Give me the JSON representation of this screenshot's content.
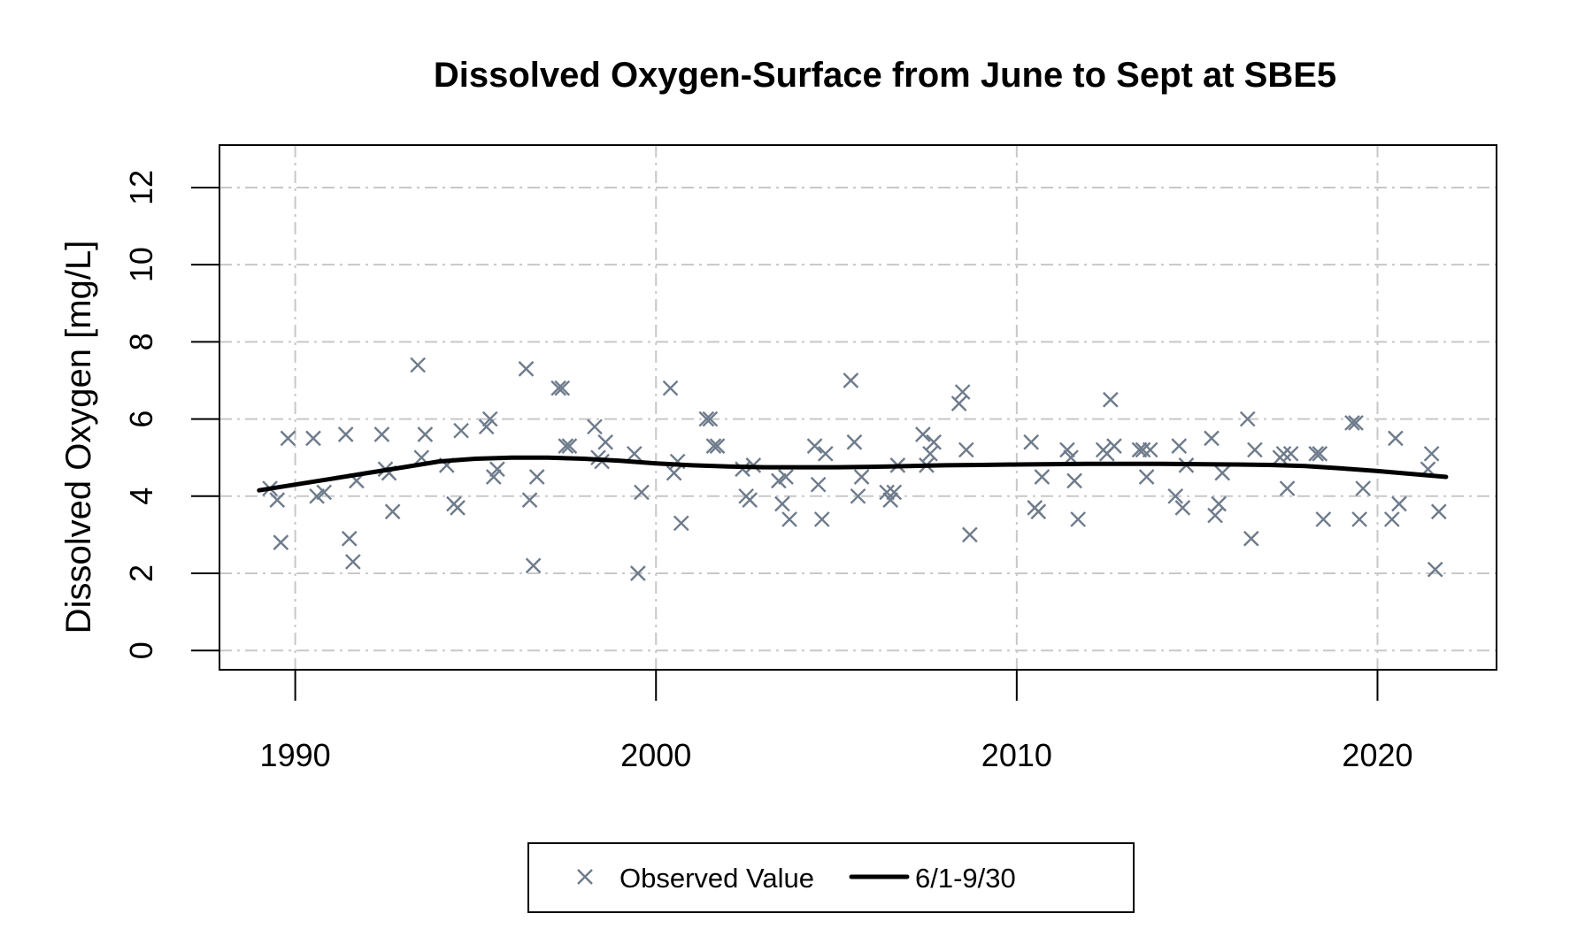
{
  "chart_data": {
    "type": "scatter",
    "title": "Dissolved Oxygen-Surface from June to Sept at SBE5",
    "xlabel": "",
    "ylabel": "Dissolved Oxygen [mg/L]",
    "xlim": [
      1987.9,
      2023.3
    ],
    "ylim": [
      -0.5,
      13.1
    ],
    "xticks": [
      1990,
      2000,
      2010,
      2020
    ],
    "yticks": [
      0,
      2,
      4,
      6,
      8,
      10,
      12
    ],
    "grid": true,
    "legend_position": "bottom",
    "colors": {
      "points": "#6e7b8b",
      "line": "#000000"
    },
    "series": [
      {
        "name": "Observed Value",
        "kind": "points",
        "marker": "x",
        "x": [
          1989.3,
          1989.5,
          1989.6,
          1989.8,
          1990.5,
          1990.6,
          1990.8,
          1991.4,
          1991.5,
          1991.6,
          1991.7,
          1992.4,
          1992.5,
          1992.6,
          1992.7,
          1993.4,
          1993.5,
          1993.6,
          1994.2,
          1994.4,
          1994.5,
          1994.6,
          1995.3,
          1995.4,
          1995.5,
          1995.6,
          1996.4,
          1996.5,
          1996.6,
          1996.7,
          1997.3,
          1997.4,
          1997.5,
          1997.6,
          1998.3,
          1998.4,
          1998.5,
          1998.6,
          1999.4,
          1999.5,
          1999.6,
          2000.4,
          2000.5,
          2000.6,
          2000.7,
          2001.4,
          2001.5,
          2001.6,
          2001.7,
          2002.4,
          2002.5,
          2002.6,
          2002.7,
          2003.4,
          2003.5,
          2003.6,
          2003.7,
          2004.4,
          2004.5,
          2004.6,
          2004.7,
          2005.4,
          2005.5,
          2005.6,
          2005.7,
          2006.4,
          2006.5,
          2006.6,
          2006.7,
          2007.4,
          2007.5,
          2007.6,
          2007.7,
          2008.4,
          2008.5,
          2008.6,
          2008.7,
          2010.4,
          2010.5,
          2010.6,
          2010.7,
          2011.4,
          2011.5,
          2011.6,
          2011.7,
          2012.4,
          2012.5,
          2012.6,
          2012.7,
          2013.4,
          2013.5,
          2013.6,
          2013.7,
          2014.4,
          2014.5,
          2014.6,
          2014.7,
          2015.4,
          2015.5,
          2015.6,
          2015.7,
          2016.4,
          2016.5,
          2016.6,
          2017.3,
          2017.4,
          2017.5,
          2017.6,
          2018.3,
          2018.4,
          2018.5,
          2019.3,
          2019.4,
          2019.5,
          2019.6,
          2020.4,
          2020.5,
          2020.6,
          2021.4,
          2021.5,
          2021.6,
          2021.7
        ],
        "y": [
          4.2,
          3.9,
          2.8,
          5.5,
          5.5,
          4.0,
          4.1,
          5.6,
          2.9,
          2.3,
          4.4,
          5.6,
          4.7,
          4.6,
          3.6,
          7.4,
          5.0,
          5.6,
          4.8,
          3.8,
          3.7,
          5.7,
          5.8,
          6.0,
          4.5,
          4.7,
          7.3,
          3.9,
          2.2,
          4.5,
          6.8,
          6.8,
          5.3,
          5.3,
          5.8,
          5.0,
          4.9,
          5.4,
          5.1,
          2.0,
          4.1,
          6.8,
          4.6,
          4.9,
          3.3,
          6.0,
          6.0,
          5.3,
          5.3,
          4.7,
          4.0,
          3.9,
          4.8,
          4.4,
          3.8,
          4.5,
          3.4,
          5.3,
          4.3,
          3.4,
          5.1,
          7.0,
          5.4,
          4.0,
          4.5,
          4.1,
          3.9,
          4.1,
          4.8,
          5.6,
          4.8,
          5.1,
          5.4,
          6.4,
          6.7,
          5.2,
          3.0,
          5.4,
          3.7,
          3.6,
          4.5,
          5.2,
          5.0,
          4.4,
          3.4,
          5.2,
          5.1,
          6.5,
          5.3,
          5.2,
          5.2,
          4.5,
          5.2,
          4.0,
          5.3,
          3.7,
          4.8,
          5.5,
          3.5,
          3.8,
          4.6,
          6.0,
          2.9,
          5.2,
          5.0,
          5.1,
          4.2,
          5.1,
          5.1,
          5.1,
          3.4,
          5.9,
          5.9,
          3.4,
          4.2,
          3.4,
          5.5,
          3.8,
          4.7,
          5.1,
          2.1,
          3.6
        ]
      },
      {
        "name": "6/1-9/30",
        "kind": "line",
        "x": [
          1989.0,
          1990.0,
          1991.0,
          1992.0,
          1993.0,
          1994.0,
          1995.0,
          1996.0,
          1997.0,
          1998.0,
          1999.0,
          2000.0,
          2001.0,
          2002.0,
          2003.0,
          2004.0,
          2005.0,
          2006.0,
          2007.0,
          2008.0,
          2009.0,
          2010.0,
          2011.0,
          2012.0,
          2013.0,
          2014.0,
          2015.0,
          2016.0,
          2017.0,
          2018.0,
          2019.0,
          2020.0,
          2021.0,
          2021.9
        ],
        "y": [
          4.15,
          4.3,
          4.45,
          4.6,
          4.75,
          4.9,
          4.97,
          5.0,
          5.0,
          4.97,
          4.92,
          4.85,
          4.8,
          4.77,
          4.75,
          4.75,
          4.75,
          4.76,
          4.78,
          4.8,
          4.81,
          4.82,
          4.83,
          4.84,
          4.84,
          4.84,
          4.83,
          4.82,
          4.81,
          4.78,
          4.72,
          4.65,
          4.57,
          4.5
        ]
      }
    ]
  }
}
